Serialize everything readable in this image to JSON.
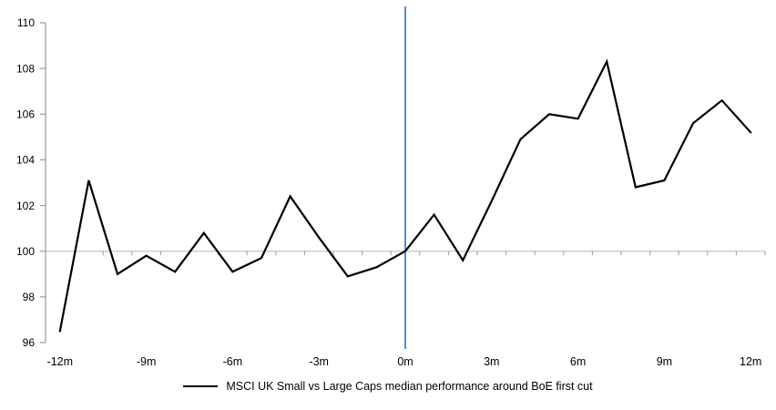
{
  "chart_data": {
    "type": "line",
    "title": "",
    "x": [
      -12,
      -11,
      -10,
      -9,
      -8,
      -7,
      -6,
      -5,
      -4,
      -3,
      -2,
      -1,
      0,
      1,
      2,
      3,
      4,
      5,
      6,
      7,
      8,
      9,
      10,
      11,
      12
    ],
    "x_tick_positions": [
      -12,
      -9,
      -6,
      -3,
      0,
      3,
      6,
      9,
      12
    ],
    "x_tick_labels": [
      "-12m",
      "-9m",
      "-6m",
      "-3m",
      "0m",
      "3m",
      "6m",
      "9m",
      "12m"
    ],
    "y_ticks": [
      96,
      98,
      100,
      102,
      104,
      106,
      108,
      110
    ],
    "ylim": [
      96,
      110
    ],
    "baseline": 100,
    "event_line_at": 0,
    "grid": "off",
    "legend_position": "bottom-center",
    "series": [
      {
        "name": "MSCI UK Small vs Large Caps median performance around BoE first cut",
        "color": "#000000",
        "values": [
          96.5,
          103.1,
          99.0,
          99.8,
          99.1,
          100.8,
          99.1,
          99.7,
          102.4,
          100.6,
          98.9,
          99.3,
          100.0,
          101.6,
          99.6,
          102.2,
          104.9,
          106.0,
          105.8,
          108.3,
          102.8,
          103.1,
          105.6,
          106.6,
          105.2
        ]
      }
    ],
    "colors": {
      "event_line": "#5b8dc4",
      "axis": "#9a9a9a",
      "baseline": "#c6c6c6",
      "text": "#000000"
    }
  }
}
